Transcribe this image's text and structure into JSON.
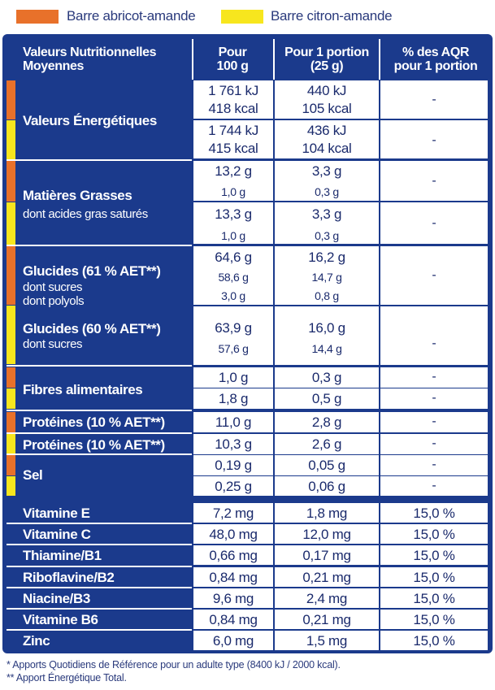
{
  "legend": [
    {
      "label": "Barre abricot-amande",
      "color": "#e8712a"
    },
    {
      "label": "Barre citron-amande",
      "color": "#f7e61e"
    }
  ],
  "headers": {
    "col1_line1": "Valeurs Nutritionnelles",
    "col1_line2": "Moyennes",
    "col2_line1": "Pour",
    "col2_line2": "100 g",
    "col3_line1": "Pour 1 portion",
    "col3_line2": "(25 g)",
    "col4_line1": "% des AQR",
    "col4_line2": "pour 1 portion"
  },
  "energy": {
    "label": "Valeurs Énergétiques",
    "abricot": {
      "p100_kj": "1 761 kJ",
      "p100_kcal": "418 kcal",
      "port_kj": "440 kJ",
      "port_kcal": "105 kcal",
      "aqr": "-"
    },
    "citron": {
      "p100_kj": "1 744 kJ",
      "p100_kcal": "415 kcal",
      "port_kj": "436 kJ",
      "port_kcal": "104 kcal",
      "aqr": "-"
    }
  },
  "fat": {
    "label": "Matières Grasses",
    "sub": "dont acides gras saturés",
    "abricot": {
      "p100": "13,2 g",
      "p100_sat": "1,0 g",
      "port": "3,3 g",
      "port_sat": "0,3 g",
      "aqr": "-"
    },
    "citron": {
      "p100": "13,3 g",
      "p100_sat": "1,0 g",
      "port": "3,3 g",
      "port_sat": "0,3 g",
      "aqr": "-"
    }
  },
  "carbs": {
    "abricot": {
      "label": "Glucides (61 % AET**)",
      "sub1": "dont sucres",
      "sub2": "dont polyols",
      "p100": "64,6 g",
      "p100_sucres": "58,6 g",
      "p100_polyols": "3,0 g",
      "port": "16,2 g",
      "port_sucres": "14,7 g",
      "port_polyols": "0,8 g",
      "aqr": "-"
    },
    "citron": {
      "label": "Glucides (60 % AET**)",
      "sub1": "dont sucres",
      "p100": "63,9 g",
      "p100_sucres": "57,6 g",
      "port": "16,0 g",
      "port_sucres": "14,4 g",
      "aqr": "-"
    }
  },
  "fibres": {
    "label": "Fibres alimentaires",
    "abricot": {
      "p100": "1,0 g",
      "port": "0,3 g",
      "aqr": "-"
    },
    "citron": {
      "p100": "1,8 g",
      "port": "0,5 g",
      "aqr": "-"
    }
  },
  "proteins": {
    "abricot": {
      "label": "Protéines (10 % AET**)",
      "p100": "11,0 g",
      "port": "2,8 g",
      "aqr": "-"
    },
    "citron": {
      "label": "Protéines (10 % AET**)",
      "p100": "10,3 g",
      "port": "2,6 g",
      "aqr": "-"
    }
  },
  "salt": {
    "label": "Sel",
    "abricot": {
      "p100": "0,19 g",
      "port": "0,05 g",
      "aqr": "-"
    },
    "citron": {
      "p100": "0,25 g",
      "port": "0,06 g",
      "aqr": "-"
    }
  },
  "vitamins": [
    {
      "label": "Vitamine E",
      "p100": "7,2 mg",
      "port": "1,8 mg",
      "aqr": "15,0 %"
    },
    {
      "label": "Vitamine C",
      "p100": "48,0 mg",
      "port": "12,0 mg",
      "aqr": "15,0 %"
    },
    {
      "label": "Thiamine/B1",
      "p100": "0,66 mg",
      "port": "0,17 mg",
      "aqr": "15,0 %"
    },
    {
      "label": "Riboflavine/B2",
      "p100": "0,84 mg",
      "port": "0,21 mg",
      "aqr": "15,0 %"
    },
    {
      "label": "Niacine/B3",
      "p100": "9,6 mg",
      "port": "2,4 mg",
      "aqr": "15,0 %"
    },
    {
      "label": "Vitamine B6",
      "p100": "0,84 mg",
      "port": "0,21 mg",
      "aqr": "15,0 %"
    },
    {
      "label": "Zinc",
      "p100": "6,0 mg",
      "port": "1,5 mg",
      "aqr": "15,0 %"
    }
  ],
  "footnotes": [
    "* Apports Quotidiens de Référence pour un adulte type (8400 kJ / 2000 kcal).",
    "** Apport Énergétique Total."
  ]
}
